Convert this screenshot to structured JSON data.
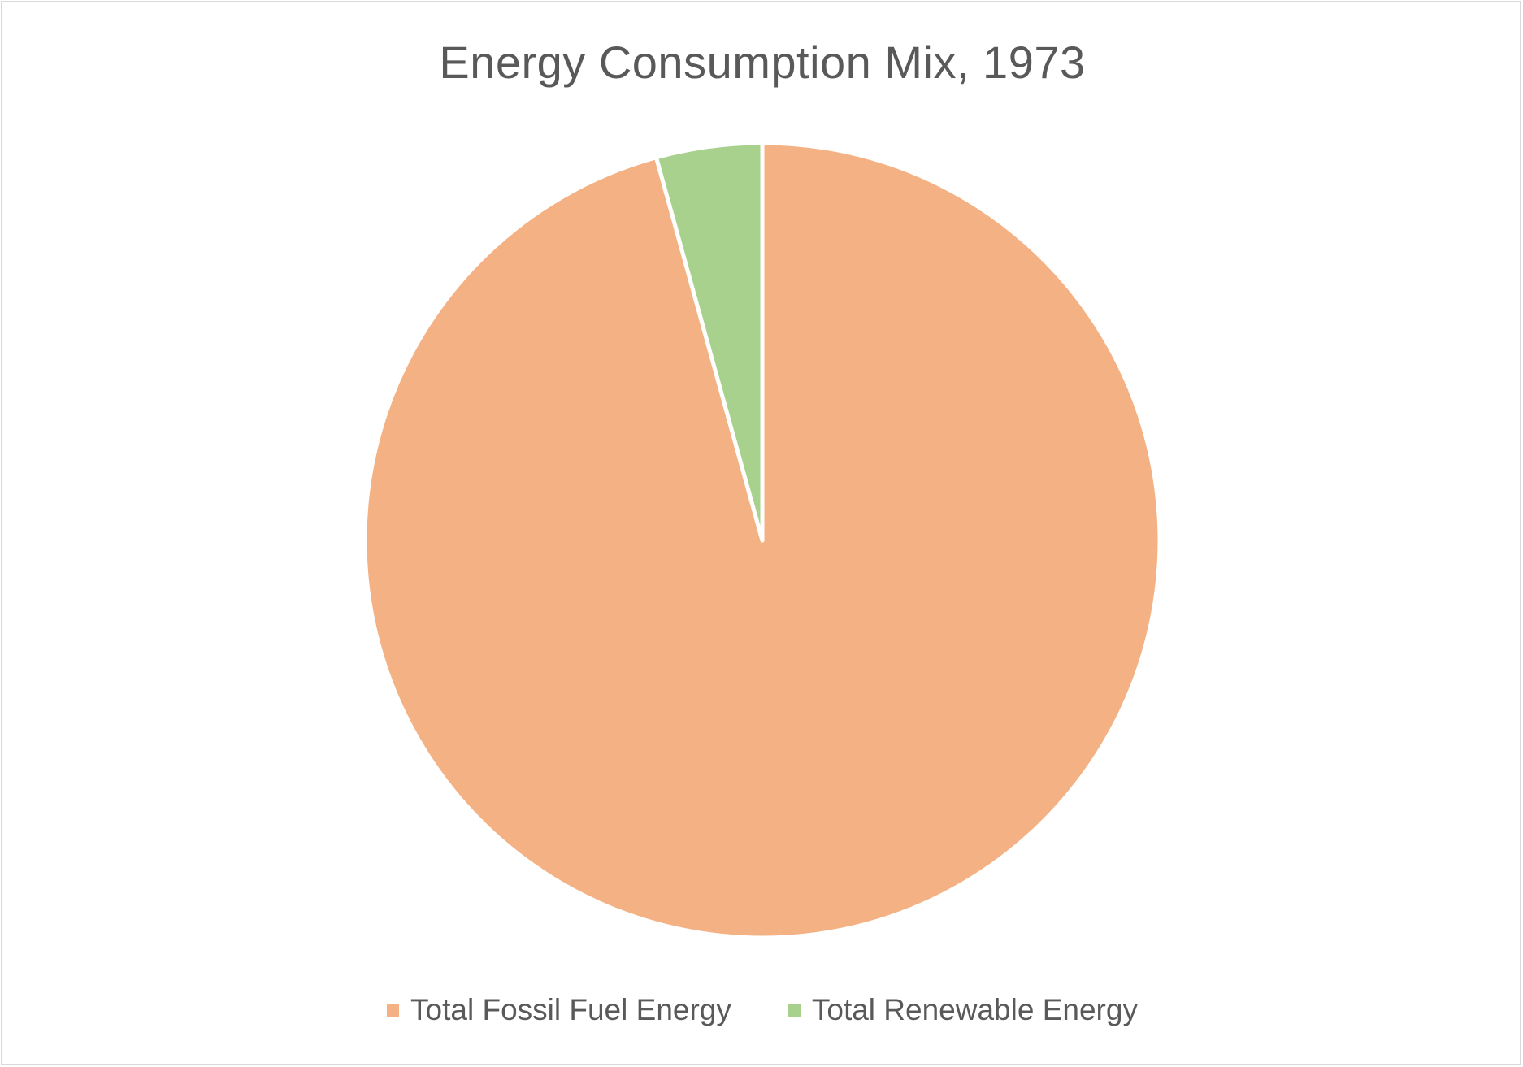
{
  "chart_data": {
    "type": "pie",
    "title": "Energy Consumption Mix, 1973",
    "categories": [
      "Total Fossil Fuel Energy",
      "Total Renewable Energy"
    ],
    "values": [
      95.7,
      4.3
    ],
    "colors": [
      "#F4B183",
      "#A9D18E"
    ],
    "start_angle_deg": 0,
    "direction": "clockwise",
    "legend_position": "bottom"
  },
  "legend": {
    "items": [
      {
        "label": "Total Fossil Fuel Energy",
        "color": "#F4B183"
      },
      {
        "label": "Total Renewable Energy",
        "color": "#A9D18E"
      }
    ]
  }
}
